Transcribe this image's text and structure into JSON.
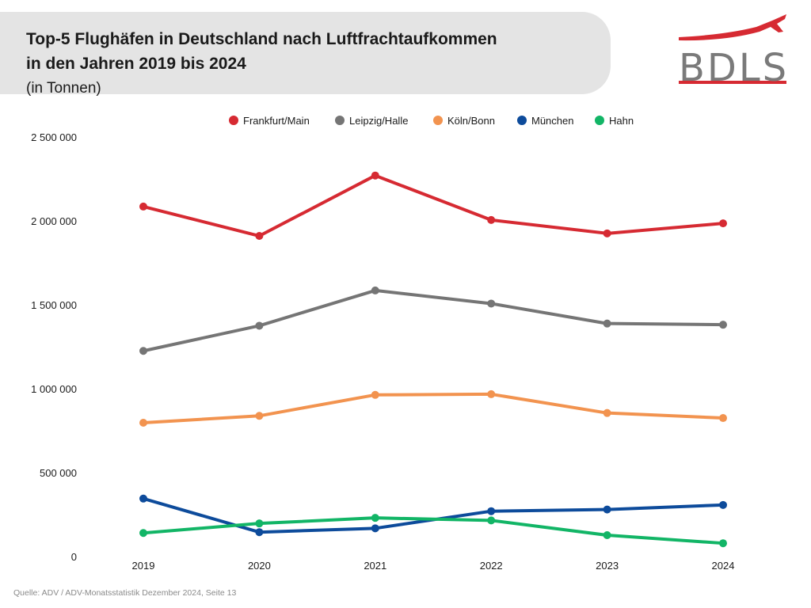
{
  "header": {
    "title_line1": "Top-5 Flughäfen in Deutschland nach Luftfrachtaufkommen",
    "title_line2": "in den Jahren 2019 bis 2024",
    "subtitle": "(in Tonnen)"
  },
  "logo": {
    "text": "BDLS",
    "icon": "airplane-icon",
    "accent_color": "#d62a32"
  },
  "source": "Quelle: ADV / ADV-Monatsstatistik Dezember 2024, Seite 13",
  "chart_data": {
    "type": "line",
    "x": [
      "2019",
      "2020",
      "2021",
      "2022",
      "2023",
      "2024"
    ],
    "ylim": [
      0,
      2500000
    ],
    "yticks": [
      0,
      500000,
      1000000,
      1500000,
      2000000,
      2500000
    ],
    "ytick_labels": [
      "0",
      "500 000",
      "1 000 000",
      "1 500 000",
      "2 000 000",
      "2 500 000"
    ],
    "grid": false,
    "legend_position": "top-center",
    "series": [
      {
        "name": "Frankfurt/Main",
        "color": "#d62a32",
        "values": [
          2090000,
          1915000,
          2275000,
          2010000,
          1930000,
          1990000
        ]
      },
      {
        "name": "Leipzig/Halle",
        "color": "#757575",
        "values": [
          1230000,
          1380000,
          1590000,
          1512000,
          1393000,
          1386000
        ]
      },
      {
        "name": "Köln/Bonn",
        "color": "#f2934f",
        "values": [
          802000,
          843000,
          968000,
          972000,
          860000,
          830000
        ]
      },
      {
        "name": "München",
        "color": "#0d4b9b",
        "values": [
          350000,
          150000,
          173000,
          275000,
          285000,
          312000
        ]
      },
      {
        "name": "Hahn",
        "color": "#12b566",
        "values": [
          145000,
          202000,
          235000,
          220000,
          132000,
          84000
        ]
      }
    ]
  }
}
